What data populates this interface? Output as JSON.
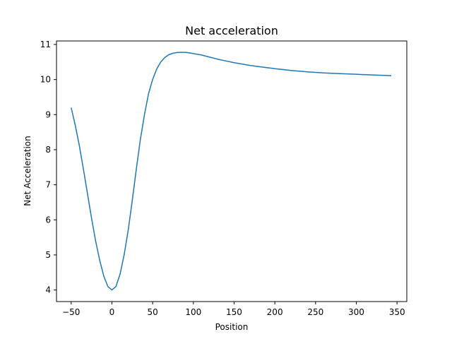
{
  "chart_data": {
    "type": "line",
    "title": "Net acceleration",
    "xlabel": "Position",
    "ylabel": "Net Acceleration",
    "xlim": [
      -68,
      362
    ],
    "ylim": [
      3.67,
      11.1
    ],
    "xticks": [
      -50,
      0,
      50,
      100,
      150,
      200,
      250,
      300,
      350
    ],
    "xtick_labels": [
      "−50",
      "0",
      "50",
      "100",
      "150",
      "200",
      "250",
      "300",
      "350"
    ],
    "yticks": [
      4,
      5,
      6,
      7,
      8,
      9,
      10,
      11
    ],
    "ytick_labels": [
      "4",
      "5",
      "6",
      "7",
      "8",
      "9",
      "10",
      "11"
    ],
    "grid": false,
    "series": [
      {
        "color": "#1f77b4",
        "x": [
          -50,
          -45,
          -40,
          -35,
          -30,
          -25,
          -20,
          -15,
          -10,
          -5,
          0,
          5,
          10,
          15,
          20,
          25,
          30,
          35,
          40,
          45,
          50,
          55,
          60,
          65,
          70,
          75,
          80,
          85,
          90,
          95,
          100,
          110,
          120,
          130,
          140,
          150,
          160,
          170,
          180,
          190,
          200,
          220,
          240,
          260,
          280,
          300,
          320,
          343
        ],
        "y": [
          9.2,
          8.7,
          8.12,
          7.45,
          6.75,
          6.05,
          5.4,
          4.85,
          4.4,
          4.1,
          4.0,
          4.1,
          4.45,
          5.0,
          5.7,
          6.55,
          7.45,
          8.3,
          9.0,
          9.6,
          10.0,
          10.3,
          10.5,
          10.63,
          10.71,
          10.75,
          10.77,
          10.775,
          10.775,
          10.76,
          10.74,
          10.7,
          10.64,
          10.58,
          10.53,
          10.48,
          10.44,
          10.4,
          10.37,
          10.34,
          10.31,
          10.26,
          10.22,
          10.19,
          10.17,
          10.15,
          10.13,
          10.11
        ]
      }
    ]
  }
}
